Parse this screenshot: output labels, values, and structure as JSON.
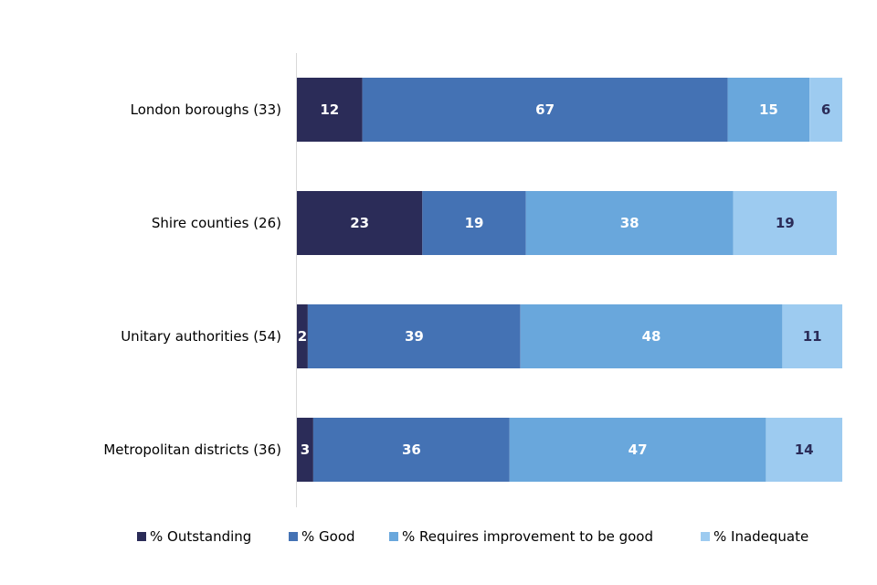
{
  "chart_data": {
    "type": "bar",
    "orientation": "horizontal",
    "stacked": true,
    "categories": [
      "London boroughs (33)",
      "Shire counties (26)",
      "Unitary authorities (54)",
      "Metropolitan districts (36)"
    ],
    "series": [
      {
        "name": "% Outstanding",
        "color": "#2b2c58",
        "label_color": "#ffffff",
        "values": [
          12,
          23,
          2,
          3
        ]
      },
      {
        "name": "% Good",
        "color": "#4472b4",
        "label_color": "#ffffff",
        "values": [
          67,
          19,
          39,
          36
        ]
      },
      {
        "name": "% Requires improvement to be good",
        "color": "#69a7dc",
        "label_color": "#ffffff",
        "values": [
          15,
          38,
          48,
          47
        ]
      },
      {
        "name": "% Inadequate",
        "color": "#9dcbf0",
        "label_color": "#2b2c58",
        "values": [
          6,
          19,
          11,
          14
        ]
      }
    ],
    "xlim": [
      0,
      100
    ],
    "title": "",
    "xlabel": "",
    "ylabel": "",
    "grid": false,
    "legend_position": "bottom"
  }
}
